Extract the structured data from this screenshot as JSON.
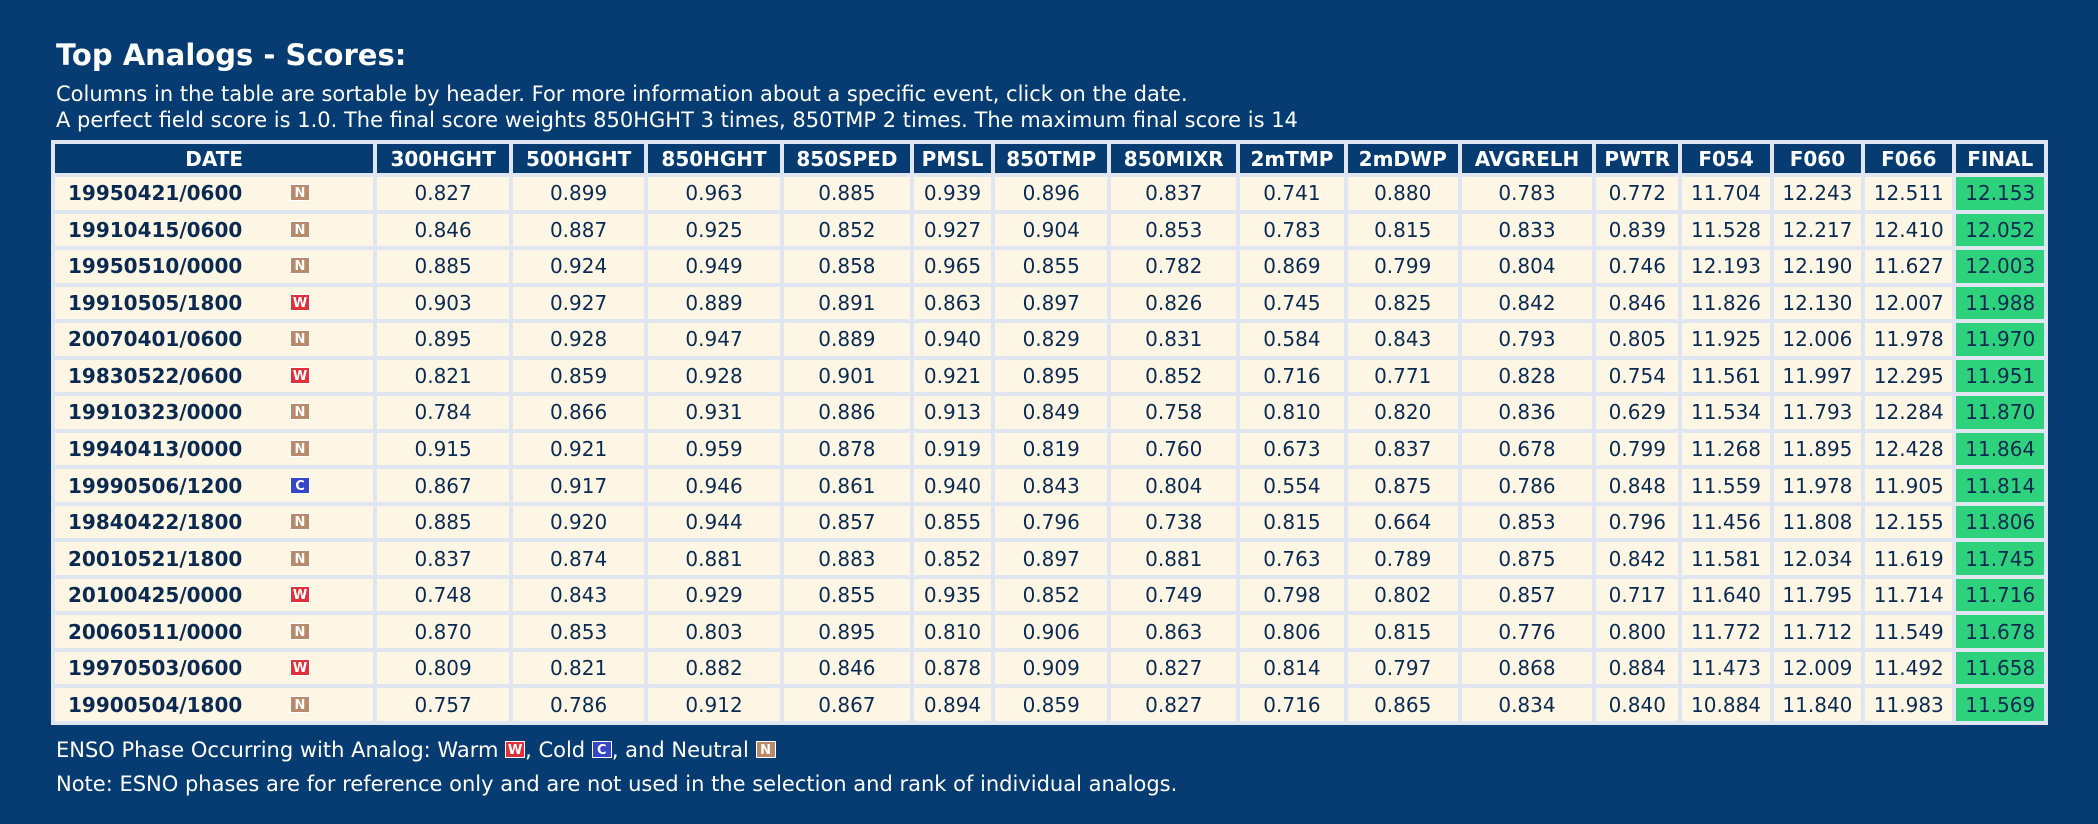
{
  "title": "Top Analogs - Scores:",
  "intro": {
    "line1": "Columns in the table are sortable by header. For more information about a specific event, click on the date.",
    "line2": "A perfect field score is 1.0. The final score weights 850HGHT 3 times, 850TMP 2 times. The maximum final score is 14"
  },
  "table": {
    "columns": [
      "DATE",
      "300HGHT",
      "500HGHT",
      "850HGHT",
      "850SPED",
      "PMSL",
      "850TMP",
      "850MIXR",
      "2mTMP",
      "2mDWP",
      "AVGRELH",
      "PWTR",
      "F054",
      "F060",
      "F066",
      "FINAL"
    ],
    "rows": [
      {
        "date": "19950421/0600",
        "enso": "N",
        "values": [
          "0.827",
          "0.899",
          "0.963",
          "0.885",
          "0.939",
          "0.896",
          "0.837",
          "0.741",
          "0.880",
          "0.783",
          "0.772",
          "11.704",
          "12.243",
          "12.511",
          "12.153"
        ]
      },
      {
        "date": "19910415/0600",
        "enso": "N",
        "values": [
          "0.846",
          "0.887",
          "0.925",
          "0.852",
          "0.927",
          "0.904",
          "0.853",
          "0.783",
          "0.815",
          "0.833",
          "0.839",
          "11.528",
          "12.217",
          "12.410",
          "12.052"
        ]
      },
      {
        "date": "19950510/0000",
        "enso": "N",
        "values": [
          "0.885",
          "0.924",
          "0.949",
          "0.858",
          "0.965",
          "0.855",
          "0.782",
          "0.869",
          "0.799",
          "0.804",
          "0.746",
          "12.193",
          "12.190",
          "11.627",
          "12.003"
        ]
      },
      {
        "date": "19910505/1800",
        "enso": "W",
        "values": [
          "0.903",
          "0.927",
          "0.889",
          "0.891",
          "0.863",
          "0.897",
          "0.826",
          "0.745",
          "0.825",
          "0.842",
          "0.846",
          "11.826",
          "12.130",
          "12.007",
          "11.988"
        ]
      },
      {
        "date": "20070401/0600",
        "enso": "N",
        "values": [
          "0.895",
          "0.928",
          "0.947",
          "0.889",
          "0.940",
          "0.829",
          "0.831",
          "0.584",
          "0.843",
          "0.793",
          "0.805",
          "11.925",
          "12.006",
          "11.978",
          "11.970"
        ]
      },
      {
        "date": "19830522/0600",
        "enso": "W",
        "values": [
          "0.821",
          "0.859",
          "0.928",
          "0.901",
          "0.921",
          "0.895",
          "0.852",
          "0.716",
          "0.771",
          "0.828",
          "0.754",
          "11.561",
          "11.997",
          "12.295",
          "11.951"
        ]
      },
      {
        "date": "19910323/0000",
        "enso": "N",
        "values": [
          "0.784",
          "0.866",
          "0.931",
          "0.886",
          "0.913",
          "0.849",
          "0.758",
          "0.810",
          "0.820",
          "0.836",
          "0.629",
          "11.534",
          "11.793",
          "12.284",
          "11.870"
        ]
      },
      {
        "date": "19940413/0000",
        "enso": "N",
        "values": [
          "0.915",
          "0.921",
          "0.959",
          "0.878",
          "0.919",
          "0.819",
          "0.760",
          "0.673",
          "0.837",
          "0.678",
          "0.799",
          "11.268",
          "11.895",
          "12.428",
          "11.864"
        ]
      },
      {
        "date": "19990506/1200",
        "enso": "C",
        "values": [
          "0.867",
          "0.917",
          "0.946",
          "0.861",
          "0.940",
          "0.843",
          "0.804",
          "0.554",
          "0.875",
          "0.786",
          "0.848",
          "11.559",
          "11.978",
          "11.905",
          "11.814"
        ]
      },
      {
        "date": "19840422/1800",
        "enso": "N",
        "values": [
          "0.885",
          "0.920",
          "0.944",
          "0.857",
          "0.855",
          "0.796",
          "0.738",
          "0.815",
          "0.664",
          "0.853",
          "0.796",
          "11.456",
          "11.808",
          "12.155",
          "11.806"
        ]
      },
      {
        "date": "20010521/1800",
        "enso": "N",
        "values": [
          "0.837",
          "0.874",
          "0.881",
          "0.883",
          "0.852",
          "0.897",
          "0.881",
          "0.763",
          "0.789",
          "0.875",
          "0.842",
          "11.581",
          "12.034",
          "11.619",
          "11.745"
        ]
      },
      {
        "date": "20100425/0000",
        "enso": "W",
        "values": [
          "0.748",
          "0.843",
          "0.929",
          "0.855",
          "0.935",
          "0.852",
          "0.749",
          "0.798",
          "0.802",
          "0.857",
          "0.717",
          "11.640",
          "11.795",
          "11.714",
          "11.716"
        ]
      },
      {
        "date": "20060511/0000",
        "enso": "N",
        "values": [
          "0.870",
          "0.853",
          "0.803",
          "0.895",
          "0.810",
          "0.906",
          "0.863",
          "0.806",
          "0.815",
          "0.776",
          "0.800",
          "11.772",
          "11.712",
          "11.549",
          "11.678"
        ]
      },
      {
        "date": "19970503/0600",
        "enso": "W",
        "values": [
          "0.809",
          "0.821",
          "0.882",
          "0.846",
          "0.878",
          "0.909",
          "0.827",
          "0.814",
          "0.797",
          "0.868",
          "0.884",
          "11.473",
          "12.009",
          "11.492",
          "11.658"
        ]
      },
      {
        "date": "19900504/1800",
        "enso": "N",
        "values": [
          "0.757",
          "0.786",
          "0.912",
          "0.867",
          "0.894",
          "0.859",
          "0.827",
          "0.716",
          "0.865",
          "0.834",
          "0.840",
          "10.884",
          "11.840",
          "11.983",
          "11.569"
        ]
      }
    ]
  },
  "legend": {
    "prefix": "ENSO Phase Occurring with Analog: Warm",
    "cold_text": ", Cold",
    "neutral_text": ", and Neutral",
    "badge_warm": "W",
    "badge_cold": "C",
    "badge_neutral": "N"
  },
  "note": "Note: ESNO phases are for reference only and are not used in the selection and rank of individual analogs.",
  "colors": {
    "background": "#063c71",
    "final_cell": "#2fd27c",
    "cell": "#fdf6e4",
    "badge_neutral": "#b98a6a",
    "badge_warm": "#e0303a",
    "badge_cold": "#3646c8"
  }
}
